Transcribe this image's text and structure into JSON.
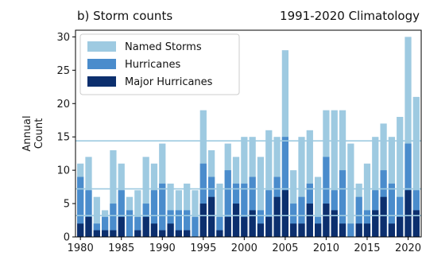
{
  "chart_data": {
    "type": "bar",
    "title_left": "b) Storm counts",
    "title_right": "1991-2020 Climatology",
    "ylabel": "Annual Count",
    "ylim": [
      0,
      31
    ],
    "yticks": [
      0,
      5,
      10,
      15,
      20,
      25,
      30
    ],
    "xticks": [
      1980,
      1985,
      1990,
      1995,
      2000,
      2005,
      2010,
      2015,
      2020
    ],
    "xlim": [
      1979.4,
      2021.6
    ],
    "years": [
      1980,
      1981,
      1982,
      1983,
      1984,
      1985,
      1986,
      1987,
      1988,
      1989,
      1990,
      1991,
      1992,
      1993,
      1994,
      1995,
      1996,
      1997,
      1998,
      1999,
      2000,
      2001,
      2002,
      2003,
      2004,
      2005,
      2006,
      2007,
      2008,
      2009,
      2010,
      2011,
      2012,
      2013,
      2014,
      2015,
      2016,
      2017,
      2018,
      2019,
      2020,
      2021
    ],
    "series": [
      {
        "name": "Named Storms",
        "color": "#9ecae1",
        "values": [
          11,
          12,
          6,
          4,
          13,
          11,
          6,
          7,
          12,
          11,
          14,
          8,
          7,
          8,
          7,
          19,
          13,
          8,
          14,
          12,
          15,
          15,
          12,
          16,
          15,
          28,
          10,
          15,
          16,
          9,
          19,
          19,
          19,
          14,
          8,
          11,
          15,
          17,
          15,
          18,
          30,
          21
        ]
      },
      {
        "name": "Hurricanes",
        "color": "#4a8ccc",
        "values": [
          9,
          7,
          2,
          3,
          5,
          7,
          4,
          3,
          5,
          7,
          8,
          4,
          4,
          4,
          3,
          11,
          9,
          3,
          10,
          8,
          8,
          9,
          4,
          7,
          9,
          15,
          5,
          6,
          8,
          3,
          12,
          7,
          10,
          2,
          6,
          4,
          7,
          10,
          8,
          6,
          14,
          7
        ]
      },
      {
        "name": "Major Hurricanes",
        "color": "#0c2f6e",
        "values": [
          2,
          3,
          1,
          1,
          1,
          3,
          0,
          1,
          3,
          2,
          1,
          2,
          1,
          1,
          0,
          5,
          6,
          1,
          3,
          5,
          3,
          4,
          2,
          3,
          6,
          7,
          2,
          2,
          5,
          2,
          5,
          4,
          2,
          0,
          2,
          2,
          4,
          6,
          2,
          3,
          7,
          4
        ]
      }
    ],
    "climatology_lines": [
      {
        "series": "Named Storms",
        "value": 14.4
      },
      {
        "series": "Hurricanes",
        "value": 7.2
      },
      {
        "series": "Major Hurricanes",
        "value": 3.2
      }
    ],
    "climatology_color": "#9ecae1",
    "legend_position": "top-left",
    "grid": false
  }
}
